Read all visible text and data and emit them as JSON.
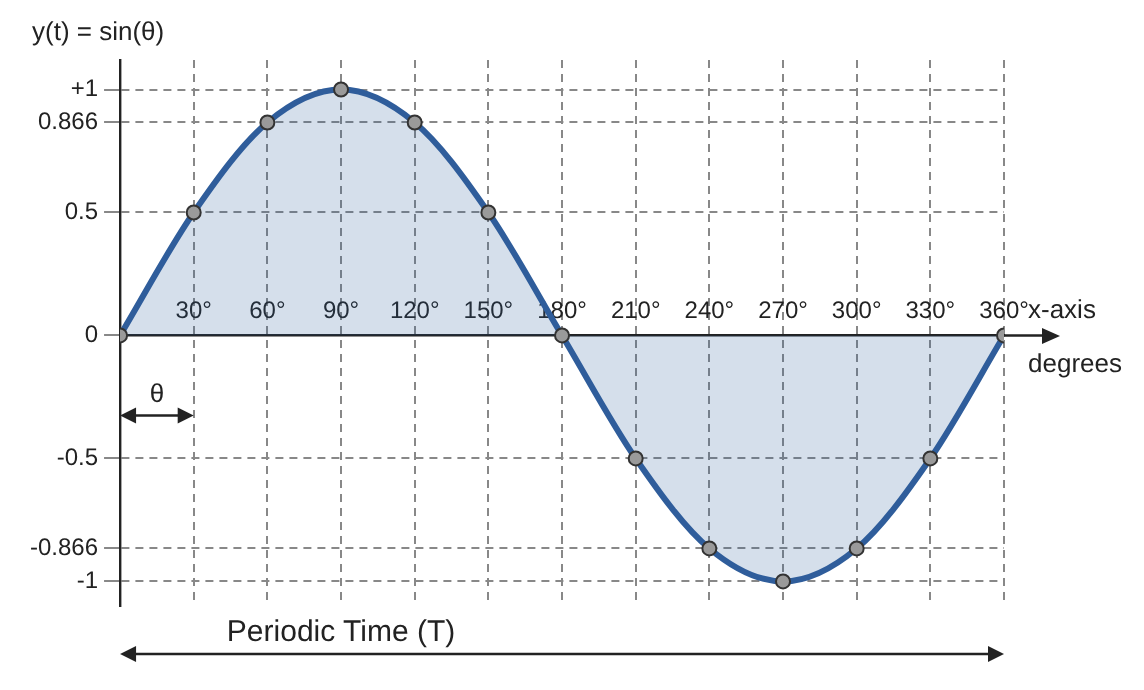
{
  "chart_data": {
    "type": "area",
    "ylabel": "y(t) = sin(θ)",
    "xlabel": "x-axis",
    "annotations": [
      "degrees",
      "θ",
      "Periodic Time (T)"
    ],
    "x": [
      0,
      30,
      60,
      90,
      120,
      150,
      180,
      210,
      240,
      270,
      300,
      330,
      360
    ],
    "series": [
      {
        "color": "#2f5d9b",
        "values": [
          0,
          0.5,
          0.866,
          1,
          0.866,
          0.5,
          0,
          -0.5,
          -0.866,
          -1,
          -0.866,
          -0.5,
          0
        ]
      }
    ],
    "xlim": [
      0,
      360
    ],
    "xticks": [
      {
        "value": 30,
        "label": "30°"
      },
      {
        "value": 60,
        "label": "60°"
      },
      {
        "value": 90,
        "label": "90°"
      },
      {
        "value": 120,
        "label": "120°"
      },
      {
        "value": 150,
        "label": "150°"
      },
      {
        "value": 180,
        "label": "180°"
      },
      {
        "value": 210,
        "label": "210°"
      },
      {
        "value": 240,
        "label": "240°"
      },
      {
        "value": 270,
        "label": "270°"
      },
      {
        "value": 300,
        "label": "300°"
      },
      {
        "value": 330,
        "label": "330°"
      },
      {
        "value": 360,
        "label": "360°"
      }
    ],
    "ylim": [
      -1.1,
      1.12
    ],
    "yticks": [
      {
        "value": 1,
        "label": "+1"
      },
      0.866,
      0.5,
      0,
      -0.5,
      -0.866,
      -1
    ],
    "grid": true,
    "marker": "circle",
    "line_style": "solid",
    "legend": false
  }
}
